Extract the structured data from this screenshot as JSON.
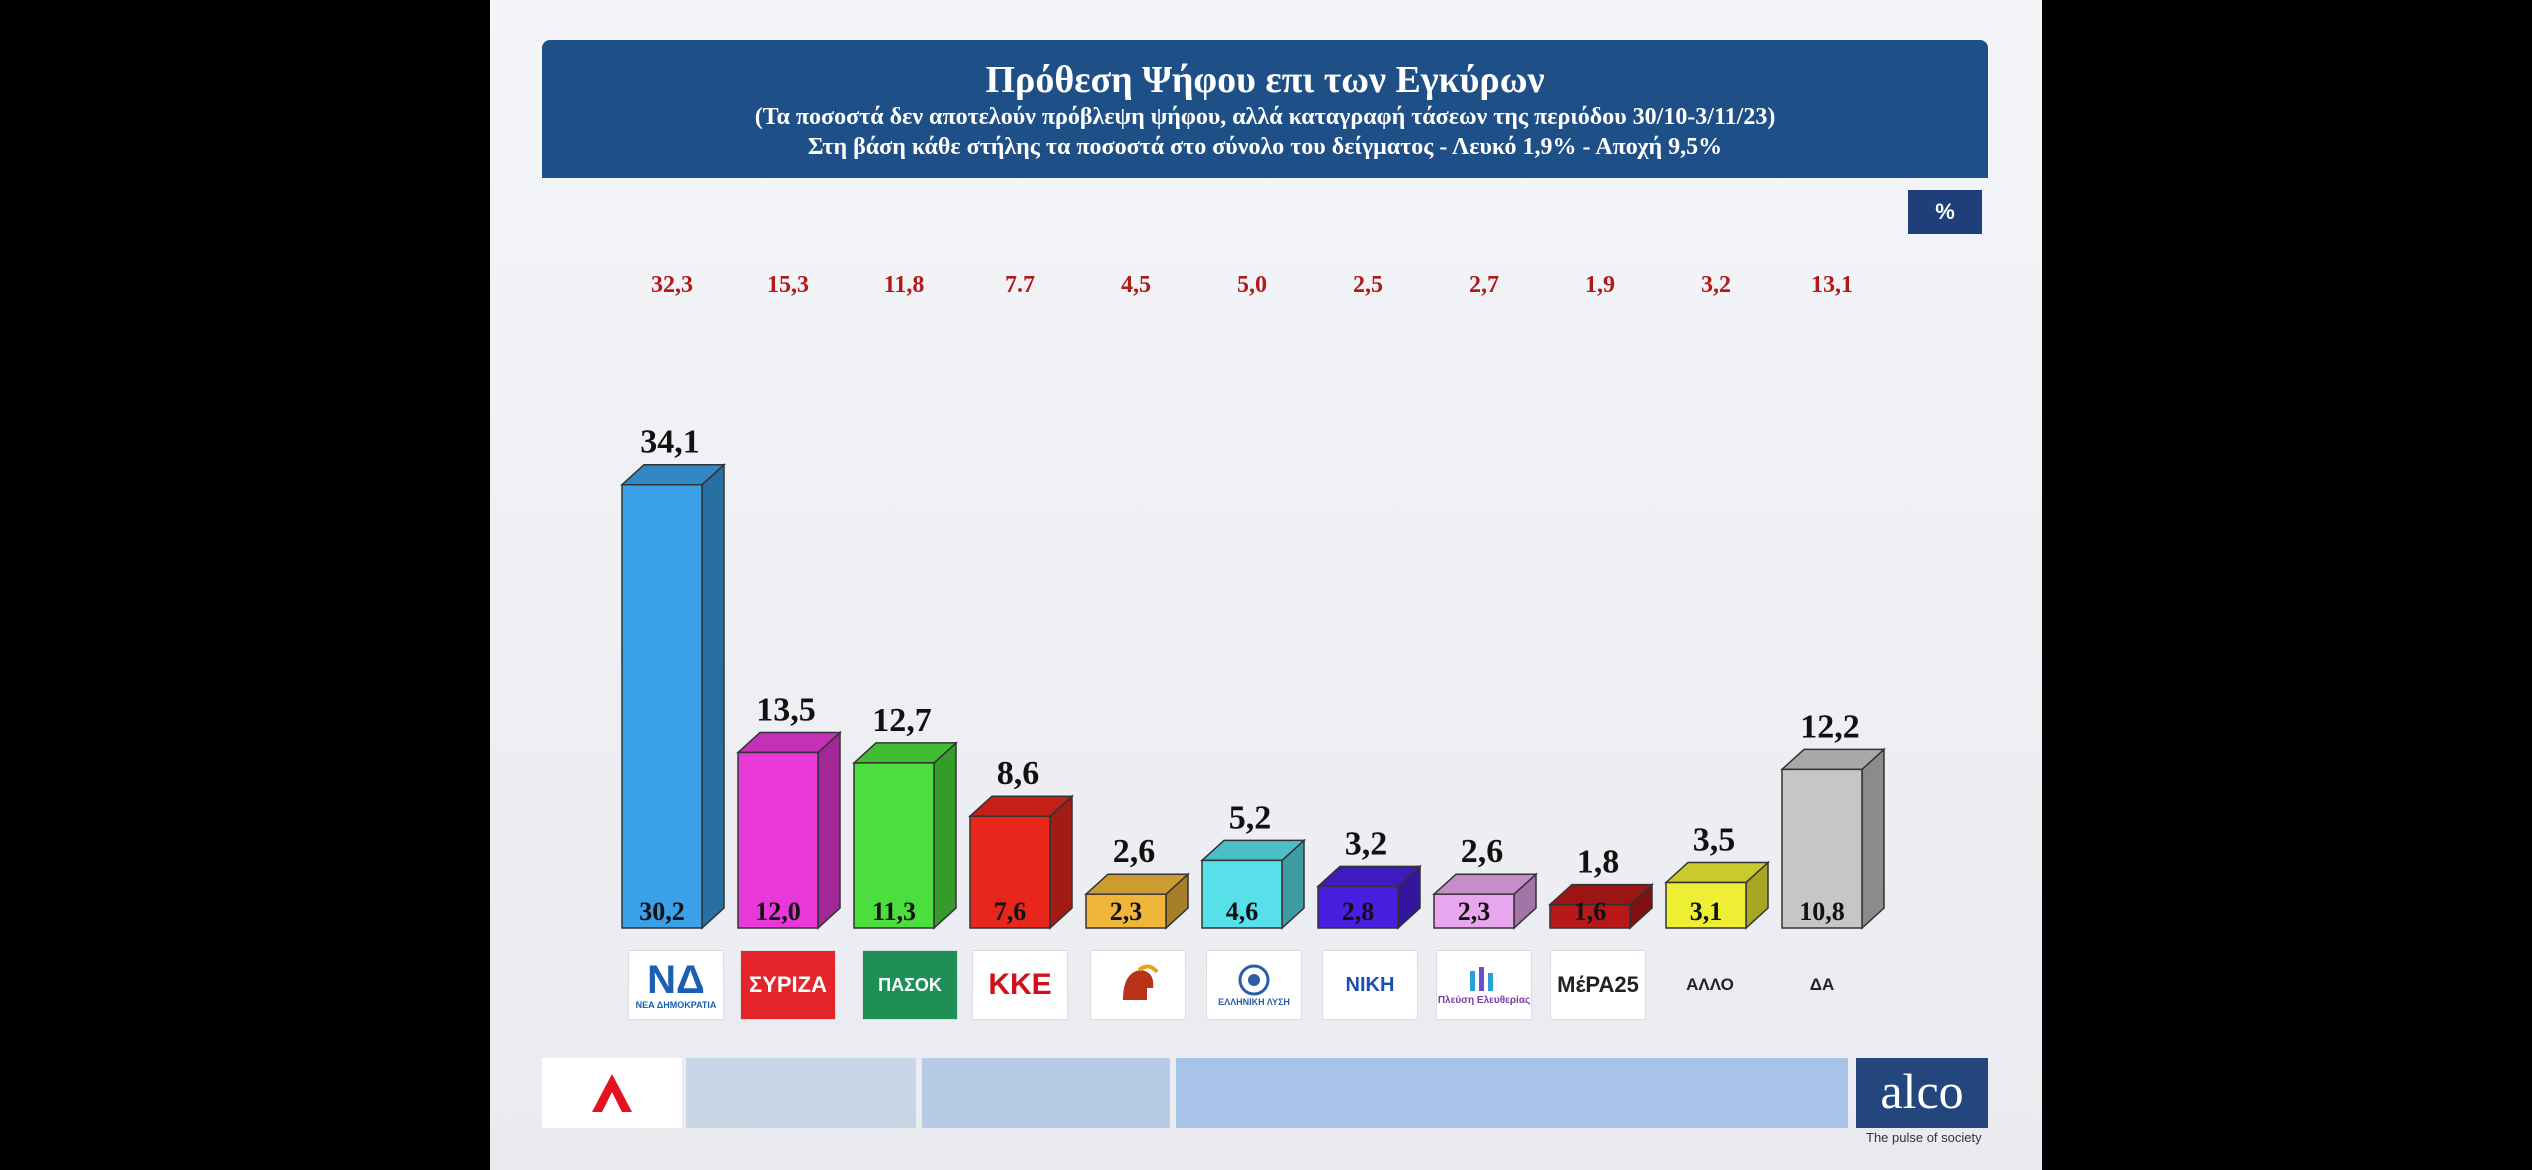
{
  "header": {
    "title": "Πρόθεση Ψήφου επι των Εγκύρων",
    "subtitle": "(Τα ποσοστά δεν αποτελούν πρόβλεψη ψήφου, αλλά καταγραφή τάσεων της περιόδου  30/10-3/11/23)",
    "subtitle2": "Στη βάση κάθε στήλης τα ποσοστά στο σύνολο του δείγματος - Λευκό 1,9% - Αποχή 9,5%"
  },
  "unit_label": "%",
  "chart_data": {
    "type": "bar",
    "title": "Πρόθεση Ψήφου επι των Εγκύρων",
    "categories": [
      "ΝΕΑ ΔΗΜΟΚΡΑΤΙΑ",
      "ΣΥΡΙΖΑ",
      "ΠΑΣΟΚ",
      "ΚΚΕ",
      "ΣΠΑΡΤΙΑΤΕΣ",
      "ΕΛΛΗΝΙΚΗ ΛΥΣΗ",
      "ΝΙΚΗ",
      "Πλεύση Ελευθερίας",
      "ΜέΡΑ25",
      "ΑΛΛΟ",
      "ΔΑ"
    ],
    "series": [
      {
        "values": [
          34.1,
          13.5,
          12.7,
          8.6,
          2.6,
          5.2,
          3.2,
          2.6,
          1.8,
          3.5,
          12.2
        ]
      },
      {
        "values": [
          30.2,
          12.0,
          11.3,
          7.6,
          2.3,
          4.6,
          2.8,
          2.3,
          1.6,
          3.1,
          10.8
        ]
      },
      {
        "values": [
          32.3,
          15.3,
          11.8,
          7.7,
          4.5,
          5.0,
          2.5,
          2.7,
          1.9,
          3.2,
          13.1
        ]
      }
    ],
    "labels_top": [
      "34,1",
      "13,5",
      "12,7",
      "8,6",
      "2,6",
      "5,2",
      "3,2",
      "2,6",
      "1,8",
      "3,5",
      "12,2"
    ],
    "labels_base": [
      "30,2",
      "12,0",
      "11,3",
      "7,6",
      "2,3",
      "4,6",
      "2,8",
      "2,3",
      "1,6",
      "3,1",
      "10,8"
    ],
    "labels_prev": [
      "32,3",
      "15,3",
      "11,8",
      "7.7",
      "4,5",
      "5,0",
      "2,5",
      "2,7",
      "1,9",
      "3,2",
      "13,1"
    ],
    "colors": [
      "#3aa0e8",
      "#e838d8",
      "#4cde3c",
      "#e8261c",
      "#f0b63a",
      "#58e0ea",
      "#4a1ee0",
      "#e8a6ee",
      "#b81818",
      "#eeee34",
      "#c6c6c6"
    ],
    "ylim": [
      0,
      36
    ],
    "grid": false,
    "legend": "none"
  },
  "logos": [
    "ΝΕΑ ΔΗΜΟΚΡΑΤΙΑ",
    "ΣΥΡΙΖΑ",
    "ΠΑΣΟΚ",
    "ΚΚΕ",
    "",
    "ΕΛΛΗΝΙΚΗ ΛΥΣΗ",
    "ΝΙΚΗ",
    "Πλεύση Ελευθερίας",
    "ΜέΡΑ25"
  ],
  "logo_text": {
    "nd": "ΝΔ",
    "syriza": "ΣΥΡΙΖΑ",
    "pasok": "ΠΑΣΟΚ",
    "kke": "ΚΚΕ",
    "niki": "ΝΙΚΗ",
    "mera": "ΜέΡΑ25",
    "allo": "ΑΛΛΟ",
    "da": "ΔΑ"
  },
  "footer": {
    "brand": "alco",
    "tagline": "The pulse of society"
  }
}
